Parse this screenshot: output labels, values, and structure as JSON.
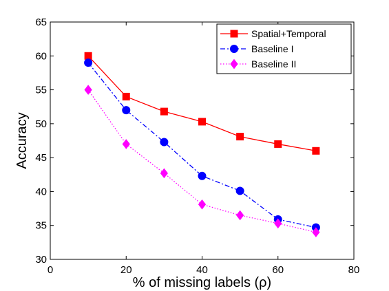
{
  "chart_data": {
    "type": "line",
    "title": "",
    "xlabel": "% of missing labels (ρ)",
    "ylabel": "Accuracy",
    "xlim": [
      0,
      80
    ],
    "ylim": [
      30,
      65
    ],
    "xticks": [
      0,
      20,
      40,
      60,
      80
    ],
    "yticks": [
      30,
      35,
      40,
      45,
      50,
      55,
      60,
      65
    ],
    "grid": false,
    "legend_position": "top-right",
    "x": [
      10,
      20,
      30,
      40,
      50,
      60,
      70
    ],
    "series": [
      {
        "name": "Spatial+Temporal",
        "values": [
          60.0,
          54.0,
          51.8,
          50.3,
          48.1,
          47.0,
          46.0
        ],
        "color": "#ff0000",
        "line_style": "solid",
        "marker": "square"
      },
      {
        "name": "Baseline I",
        "values": [
          59.0,
          52.0,
          47.3,
          42.3,
          40.1,
          35.9,
          34.7
        ],
        "color": "#0000ff",
        "line_style": "dashdot",
        "marker": "circle"
      },
      {
        "name": "Baseline II",
        "values": [
          55.0,
          47.0,
          42.7,
          38.1,
          36.5,
          35.3,
          34.0
        ],
        "color": "#ff00ff",
        "line_style": "dotted",
        "marker": "diamond"
      }
    ]
  }
}
